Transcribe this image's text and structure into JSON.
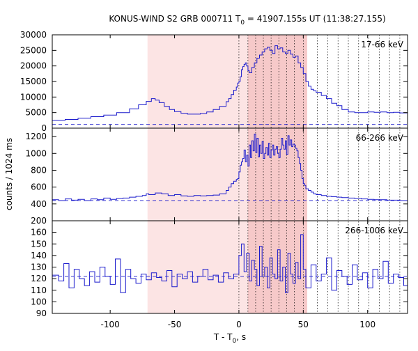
{
  "chart_data": {
    "type": "line",
    "title": "KONUS-WIND S2 GRB 000711 T",
    "title_sub": "0",
    "title_rest": " = 41907.155s UT (11:38:27.155)",
    "xlabel": "T - T",
    "xlabel_sub": "0",
    "xlabel_rest": ", s",
    "ylabel": "counts / 1024 ms",
    "xlim": [
      -145,
      131
    ],
    "x_ticks": [
      -100,
      -50,
      0,
      50,
      100
    ],
    "x_tick_labels": [
      "-100",
      "-50",
      "0",
      "50",
      "100"
    ],
    "shaded_regions": [
      {
        "x": [
          -71,
          53
        ],
        "color": "#fce4e4"
      },
      {
        "x": [
          7,
          53
        ],
        "color": "#f6c9c9"
      }
    ],
    "dotted_verticals": [
      0,
      7,
      13,
      19,
      25,
      31,
      37,
      43,
      50,
      61,
      69,
      77,
      85,
      93,
      101,
      109,
      117,
      125
    ],
    "line_color": "#1a1acc",
    "panels": [
      {
        "label": "17-66 keV",
        "ylim": [
          0,
          30000
        ],
        "y_ticks": [
          0,
          5000,
          10000,
          15000,
          20000,
          25000,
          30000
        ],
        "y_tick_labels": [
          "0",
          "5000",
          "10000",
          "15000",
          "20000",
          "25000",
          "30000"
        ],
        "background": 1200,
        "series_x": [
          -145,
          -135,
          -125,
          -115,
          -105,
          -95,
          -85,
          -78,
          -72,
          -68,
          -65,
          -62,
          -58,
          -54,
          -50,
          -45,
          -40,
          -35,
          -30,
          -25,
          -20,
          -15,
          -10,
          -8,
          -6,
          -4,
          -2,
          -1,
          0,
          1,
          2,
          3,
          4,
          5,
          6,
          7,
          8,
          10,
          12,
          14,
          16,
          18,
          20,
          22,
          24,
          26,
          28,
          30,
          32,
          34,
          36,
          38,
          40,
          42,
          44,
          46,
          48,
          50,
          52,
          54,
          56,
          58,
          60,
          64,
          68,
          72,
          76,
          80,
          85,
          90,
          95,
          100,
          105,
          110,
          115,
          120,
          125,
          131
        ],
        "series_y": [
          2500,
          2800,
          3200,
          3700,
          4200,
          5000,
          6200,
          7500,
          8600,
          9500,
          9000,
          8200,
          7000,
          6000,
          5300,
          4800,
          4500,
          4500,
          4700,
          5200,
          6000,
          7000,
          8500,
          9500,
          10800,
          12200,
          13200,
          14500,
          15000,
          16500,
          18800,
          19800,
          20500,
          21000,
          20000,
          18500,
          17800,
          19500,
          21000,
          22500,
          23500,
          24500,
          25500,
          26000,
          25000,
          24000,
          26500,
          25500,
          25800,
          24500,
          24000,
          25000,
          23800,
          22800,
          23200,
          21000,
          19500,
          17500,
          15000,
          13500,
          12500,
          12000,
          11500,
          10500,
          9500,
          8000,
          7200,
          6000,
          5200,
          5000,
          5000,
          5200,
          5100,
          5200,
          5000,
          5100,
          4900,
          5000
        ]
      },
      {
        "label": "66-266 keV",
        "ylim": [
          200,
          1300
        ],
        "y_ticks": [
          200,
          400,
          600,
          800,
          1000,
          1200
        ],
        "y_tick_labels": [
          "200",
          "400",
          "600",
          "800",
          "1000",
          "1200"
        ],
        "background": 440,
        "series_x": [
          -145,
          -140,
          -135,
          -130,
          -125,
          -120,
          -115,
          -110,
          -105,
          -100,
          -95,
          -90,
          -85,
          -80,
          -75,
          -72,
          -70,
          -65,
          -60,
          -55,
          -50,
          -45,
          -40,
          -35,
          -30,
          -25,
          -20,
          -15,
          -10,
          -8,
          -6,
          -4,
          -2,
          -1,
          0,
          1,
          2,
          3,
          4,
          5,
          6,
          7,
          8,
          9,
          10,
          11,
          12,
          13,
          14,
          15,
          16,
          17,
          18,
          19,
          20,
          21,
          22,
          23,
          24,
          25,
          26,
          27,
          28,
          29,
          30,
          31,
          32,
          33,
          34,
          35,
          36,
          37,
          38,
          39,
          40,
          41,
          42,
          43,
          44,
          45,
          46,
          47,
          48,
          49,
          50,
          51,
          52,
          54,
          56,
          58,
          60,
          64,
          68,
          72,
          76,
          80,
          85,
          90,
          95,
          100,
          105,
          110,
          115,
          120,
          125,
          131
        ],
        "series_y": [
          450,
          440,
          460,
          445,
          455,
          440,
          460,
          450,
          470,
          455,
          465,
          470,
          480,
          490,
          500,
          520,
          510,
          530,
          520,
          500,
          510,
          495,
          490,
          500,
          495,
          500,
          505,
          520,
          560,
          600,
          640,
          670,
          690,
          700,
          780,
          860,
          900,
          940,
          1040,
          900,
          980,
          850,
          1100,
          950,
          1150,
          1030,
          1230,
          1010,
          1180,
          960,
          1100,
          1000,
          1140,
          940,
          1000,
          1070,
          980,
          1120,
          950,
          1040,
          1100,
          980,
          1050,
          1080,
          1000,
          950,
          1050,
          1180,
          1100,
          1050,
          1150,
          990,
          1210,
          1100,
          1160,
          1080,
          1110,
          1100,
          1060,
          1030,
          950,
          880,
          800,
          700,
          640,
          620,
          580,
          560,
          540,
          520,
          510,
          500,
          490,
          485,
          480,
          475,
          470,
          465,
          460,
          455,
          450,
          450,
          445,
          445,
          440,
          440
        ]
      },
      {
        "label": "266-1006 keV",
        "ylim": [
          90,
          170
        ],
        "y_ticks": [
          90,
          100,
          110,
          120,
          130,
          140,
          150,
          160
        ],
        "y_tick_labels": [
          "90",
          "100",
          "110",
          "120",
          "130",
          "140",
          "150",
          "160"
        ],
        "background": 122,
        "series_x": [
          -145,
          -140,
          -136,
          -132,
          -128,
          -124,
          -120,
          -116,
          -112,
          -108,
          -104,
          -100,
          -96,
          -92,
          -88,
          -84,
          -80,
          -76,
          -72,
          -68,
          -64,
          -60,
          -56,
          -52,
          -48,
          -44,
          -40,
          -36,
          -32,
          -28,
          -24,
          -20,
          -16,
          -12,
          -8,
          -4,
          0,
          2,
          4,
          6,
          8,
          10,
          12,
          14,
          16,
          18,
          20,
          22,
          24,
          26,
          28,
          30,
          32,
          34,
          36,
          38,
          40,
          42,
          44,
          46,
          48,
          50,
          52,
          56,
          60,
          64,
          68,
          72,
          76,
          80,
          84,
          88,
          92,
          96,
          100,
          104,
          108,
          112,
          116,
          120,
          124,
          128,
          131
        ],
        "series_y": [
          123,
          118,
          133,
          112,
          128,
          120,
          114,
          126,
          117,
          130,
          122,
          115,
          137,
          108,
          128,
          120,
          116,
          124,
          119,
          125,
          121,
          118,
          127,
          113,
          124,
          120,
          126,
          117,
          122,
          128,
          119,
          123,
          117,
          125,
          120,
          124,
          140,
          150,
          126,
          142,
          118,
          136,
          128,
          114,
          148,
          122,
          130,
          112,
          138,
          124,
          120,
          145,
          118,
          130,
          108,
          142,
          124,
          116,
          134,
          120,
          158,
          128,
          112,
          132,
          118,
          124,
          138,
          110,
          127,
          122,
          115,
          132,
          119,
          125,
          112,
          128,
          120,
          135,
          116,
          124,
          121,
          114,
          126
        ]
      }
    ]
  }
}
